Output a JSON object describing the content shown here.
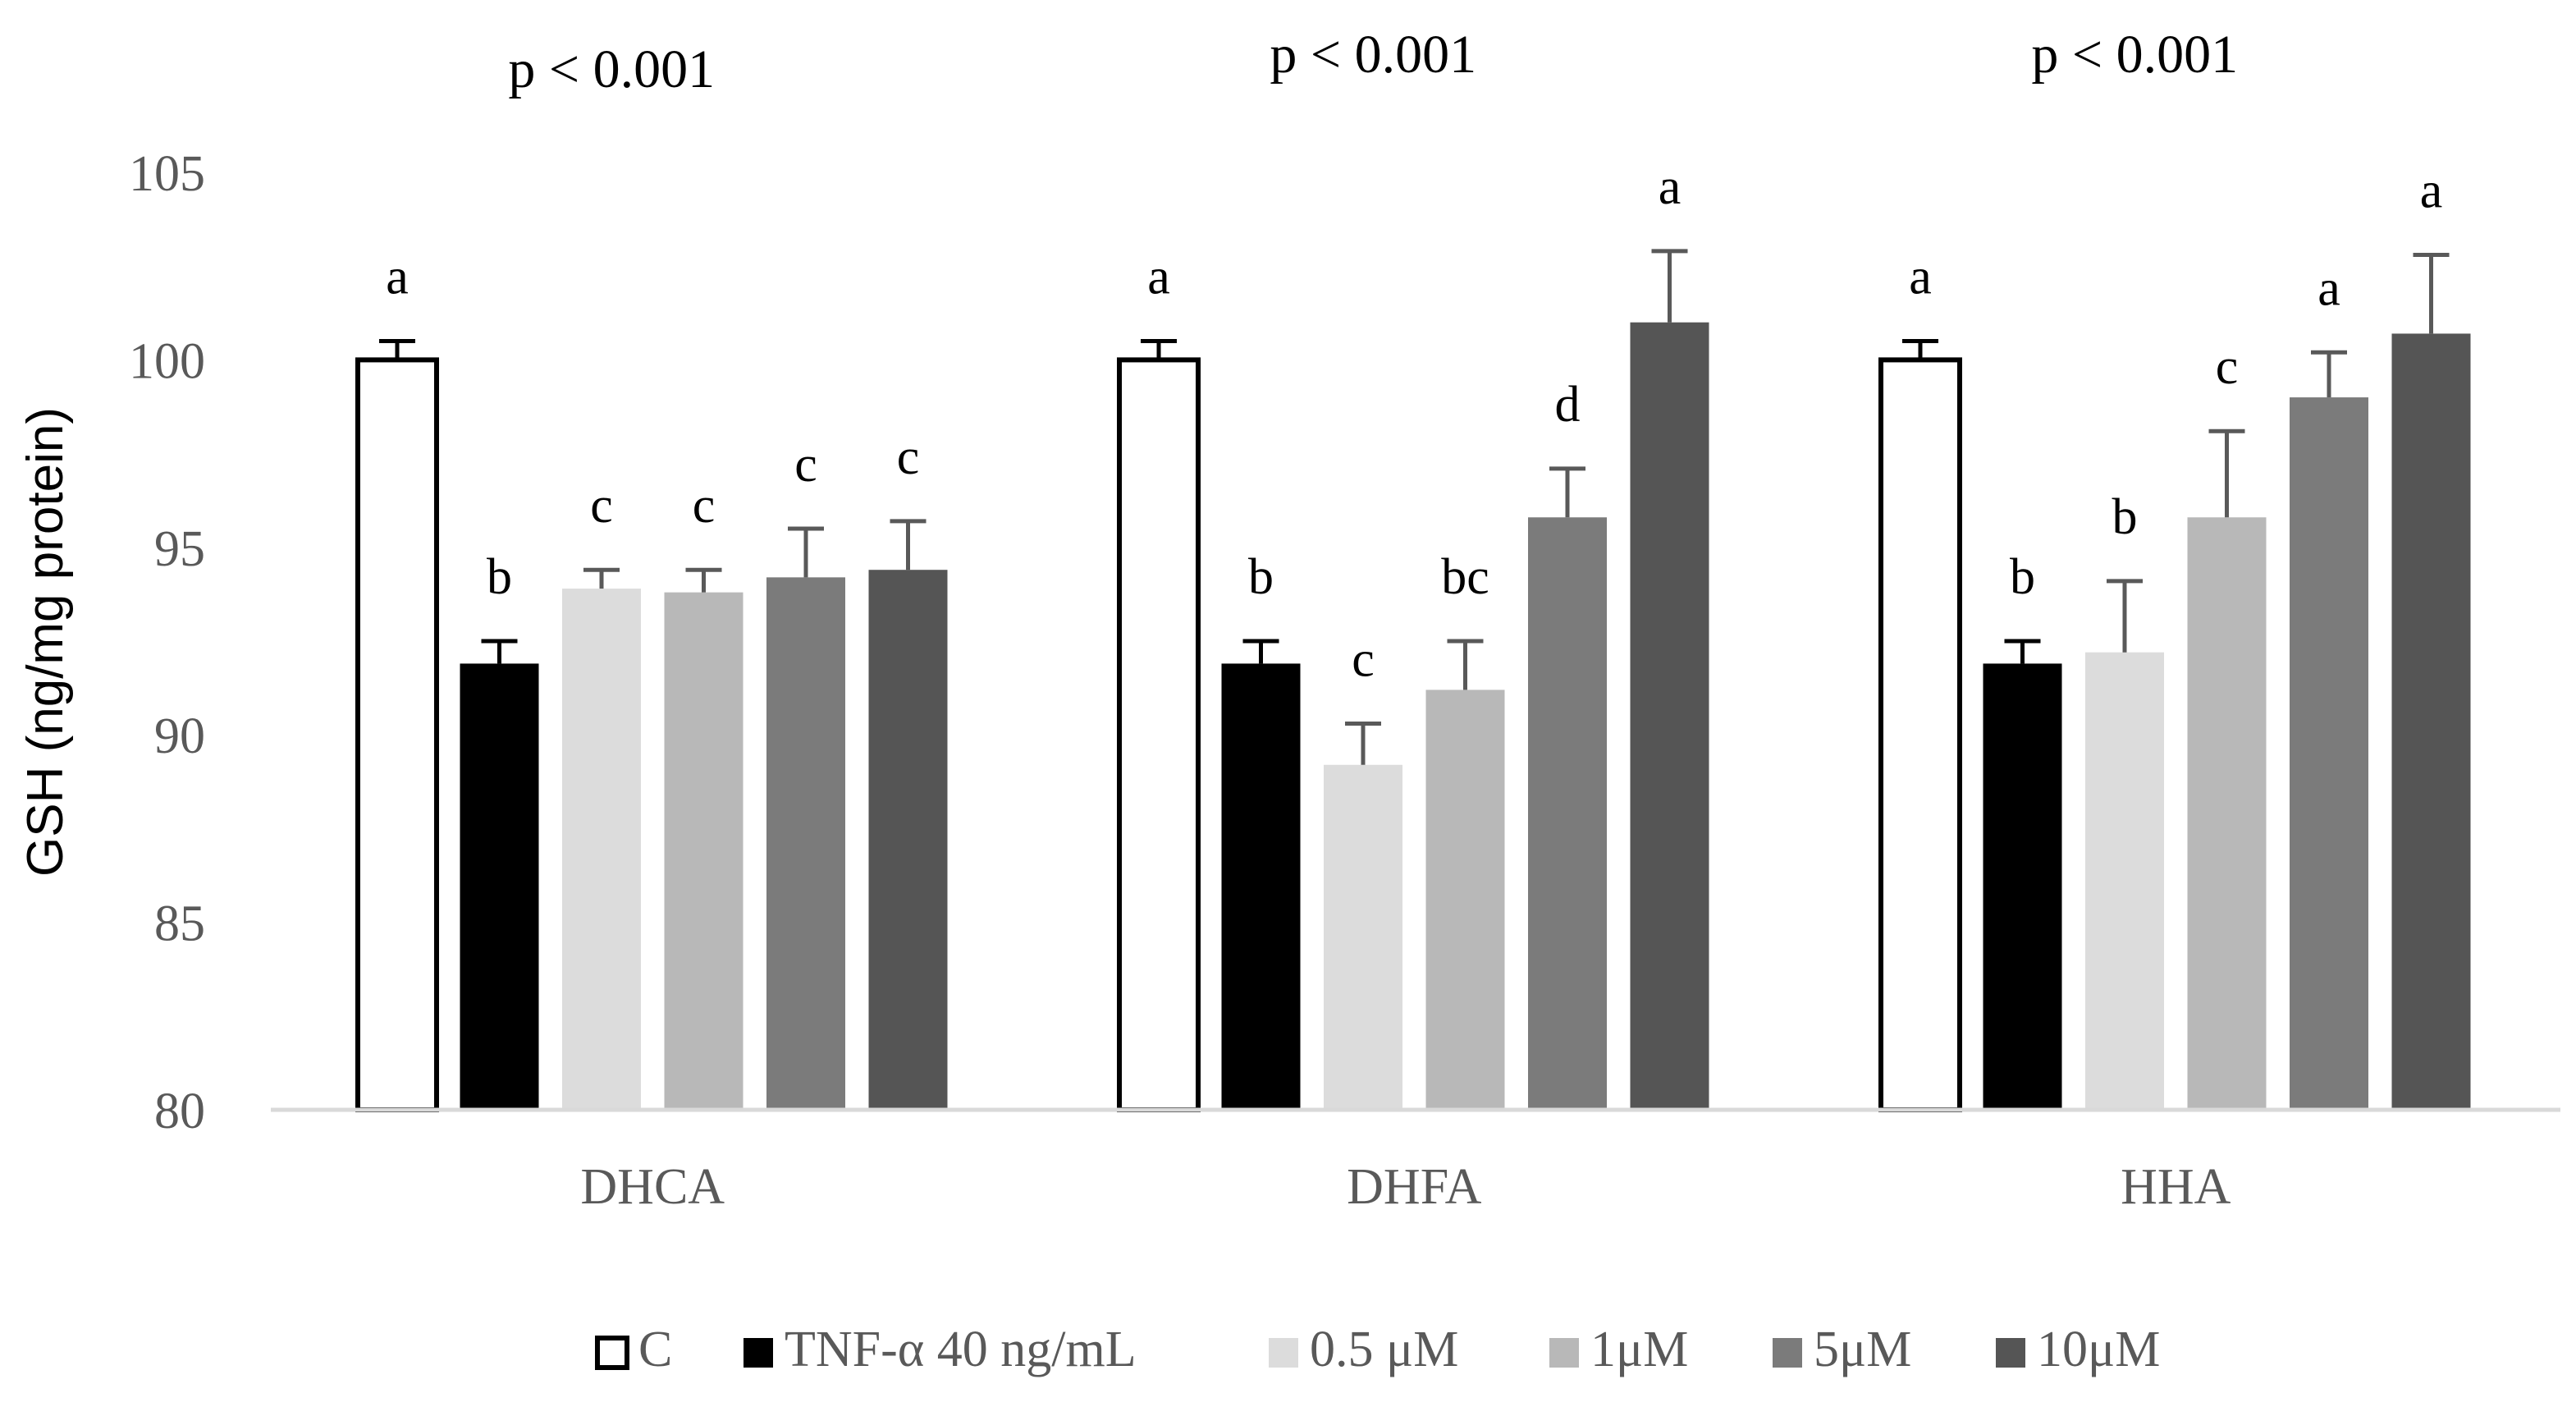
{
  "chart_data": {
    "type": "bar",
    "ylabel": "GSH (ng/mg protein)",
    "ylim": [
      80,
      105
    ],
    "yticks": [
      80,
      85,
      90,
      95,
      100,
      105
    ],
    "grid": false,
    "legend_position": "bottom",
    "categories": [
      "DHCA",
      "DHFA",
      "HHA"
    ],
    "group_titles": [
      "p < 0.001",
      "p < 0.001",
      "p < 0.001"
    ],
    "series": [
      {
        "name": "C",
        "color": "#ffffff",
        "stroke": "#000000",
        "values": [
          100.0,
          100.0,
          100.0
        ],
        "errors": [
          0.5,
          0.5,
          0.5
        ],
        "letters": [
          "a",
          "a",
          "a"
        ]
      },
      {
        "name": "TNF-α 40 ng/mL",
        "color": "#000000",
        "stroke": "#000000",
        "values": [
          91.9,
          91.9,
          91.9
        ],
        "errors": [
          0.6,
          0.6,
          0.6
        ],
        "letters": [
          "b",
          "b",
          "b"
        ]
      },
      {
        "name": "0.5 μM",
        "color": "#dcdcdc",
        "stroke": "#dcdcdc",
        "values": [
          93.9,
          89.2,
          92.2
        ],
        "errors": [
          0.5,
          1.1,
          1.9
        ],
        "letters": [
          "c",
          "c",
          "b"
        ]
      },
      {
        "name": "1μM",
        "color": "#b8b8b8",
        "stroke": "#b8b8b8",
        "values": [
          93.8,
          91.2,
          95.8
        ],
        "errors": [
          0.6,
          1.3,
          2.3
        ],
        "letters": [
          "c",
          "bc",
          "c"
        ]
      },
      {
        "name": "5μM",
        "color": "#7b7b7b",
        "stroke": "#7b7b7b",
        "values": [
          94.2,
          95.8,
          99.0
        ],
        "errors": [
          1.3,
          1.3,
          1.2
        ],
        "letters": [
          "c",
          "d",
          "a"
        ]
      },
      {
        "name": "10μM",
        "color": "#555555",
        "stroke": "#555555",
        "values": [
          94.4,
          101.0,
          100.7
        ],
        "errors": [
          1.3,
          1.9,
          2.1
        ],
        "letters": [
          "c",
          "a",
          "a"
        ]
      }
    ]
  }
}
